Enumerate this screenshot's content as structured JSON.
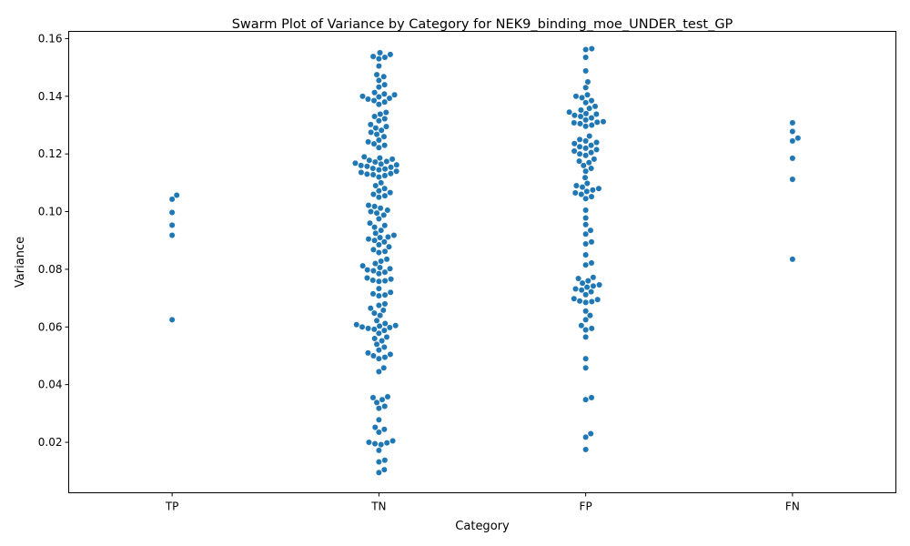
{
  "chart_data": {
    "type": "scatter",
    "subtype": "swarm",
    "title": "Swarm Plot of Variance by Category for NEK9_binding_moe_UNDER_test_GP",
    "xlabel": "Category",
    "ylabel": "Variance",
    "categories": [
      "TP",
      "TN",
      "FP",
      "FN"
    ],
    "ylim": [
      0.0025,
      0.1625
    ],
    "yticks": [
      0.02,
      0.04,
      0.06,
      0.08,
      0.1,
      0.12,
      0.14,
      0.16
    ],
    "ytick_labels": [
      "0.02",
      "0.04",
      "0.06",
      "0.08",
      "0.10",
      "0.12",
      "0.14",
      "0.16"
    ],
    "grid": false,
    "point_color": "#1f77b4",
    "values": {
      "TP": [
        0.1057,
        0.1043,
        0.0997,
        0.0953,
        0.0918,
        0.0625
      ],
      "TN": [
        0.1551,
        0.1545,
        0.1538,
        0.1535,
        0.153,
        0.1505,
        0.1475,
        0.1468,
        0.1455,
        0.144,
        0.1432,
        0.1413,
        0.1408,
        0.1405,
        0.14,
        0.1398,
        0.1393,
        0.139,
        0.1385,
        0.138,
        0.1372,
        0.1344,
        0.1338,
        0.133,
        0.1322,
        0.1315,
        0.1302,
        0.1295,
        0.129,
        0.1282,
        0.1275,
        0.1268,
        0.126,
        0.1248,
        0.1242,
        0.1235,
        0.123,
        0.1222,
        0.119,
        0.1186,
        0.1182,
        0.1178,
        0.1174,
        0.1172,
        0.1168,
        0.1165,
        0.1162,
        0.116,
        0.1157,
        0.1154,
        0.115,
        0.1148,
        0.1145,
        0.114,
        0.1136,
        0.1132,
        0.113,
        0.1128,
        0.1125,
        0.112,
        0.11,
        0.109,
        0.108,
        0.1072,
        0.1066,
        0.106,
        0.1055,
        0.105,
        0.1022,
        0.1018,
        0.1012,
        0.1005,
        0.1,
        0.0995,
        0.0988,
        0.0975,
        0.096,
        0.0952,
        0.0946,
        0.0935,
        0.0925,
        0.0918,
        0.0912,
        0.091,
        0.0905,
        0.09,
        0.0895,
        0.0885,
        0.0878,
        0.0868,
        0.0862,
        0.0858,
        0.0835,
        0.0828,
        0.082,
        0.0812,
        0.0806,
        0.0802,
        0.0798,
        0.0795,
        0.079,
        0.0785,
        0.077,
        0.0766,
        0.0762,
        0.076,
        0.0758,
        0.0733,
        0.072,
        0.0715,
        0.0711,
        0.0708,
        0.068,
        0.0675,
        0.0665,
        0.0658,
        0.0648,
        0.064,
        0.0622,
        0.0612,
        0.0608,
        0.0605,
        0.0603,
        0.06,
        0.0598,
        0.0595,
        0.0592,
        0.0588,
        0.0578,
        0.0565,
        0.056,
        0.0552,
        0.054,
        0.053,
        0.052,
        0.051,
        0.0505,
        0.05,
        0.0495,
        0.049,
        0.0458,
        0.0445,
        0.0358,
        0.0355,
        0.0348,
        0.0338,
        0.0325,
        0.0318,
        0.0278,
        0.0252,
        0.0245,
        0.0235,
        0.0205,
        0.02,
        0.0198,
        0.0195,
        0.0192,
        0.0172,
        0.0138,
        0.0132,
        0.0105,
        0.0095
      ],
      "FP": [
        0.1565,
        0.1562,
        0.1535,
        0.1488,
        0.145,
        0.143,
        0.1405,
        0.14,
        0.1395,
        0.1385,
        0.1378,
        0.1365,
        0.1358,
        0.1352,
        0.1345,
        0.134,
        0.1338,
        0.1334,
        0.133,
        0.1325,
        0.1318,
        0.1312,
        0.131,
        0.1308,
        0.1305,
        0.13,
        0.1296,
        0.1262,
        0.125,
        0.1245,
        0.124,
        0.1236,
        0.123,
        0.1225,
        0.122,
        0.1215,
        0.121,
        0.1205,
        0.12,
        0.1195,
        0.1182,
        0.1175,
        0.117,
        0.116,
        0.115,
        0.114,
        0.1118,
        0.1098,
        0.109,
        0.1085,
        0.108,
        0.1075,
        0.107,
        0.1065,
        0.106,
        0.1052,
        0.1045,
        0.1005,
        0.0978,
        0.0955,
        0.0935,
        0.0922,
        0.0895,
        0.0888,
        0.085,
        0.0822,
        0.0815,
        0.0772,
        0.0768,
        0.076,
        0.0752,
        0.0746,
        0.0742,
        0.0738,
        0.0732,
        0.0728,
        0.0722,
        0.0712,
        0.0698,
        0.0695,
        0.069,
        0.0688,
        0.0685,
        0.0655,
        0.064,
        0.0625,
        0.0605,
        0.0595,
        0.059,
        0.0565,
        0.049,
        0.0458,
        0.0355,
        0.0348,
        0.023,
        0.0218,
        0.0175
      ],
      "FN": [
        0.1308,
        0.1278,
        0.1255,
        0.1245,
        0.1185,
        0.1112,
        0.0835
      ]
    }
  }
}
